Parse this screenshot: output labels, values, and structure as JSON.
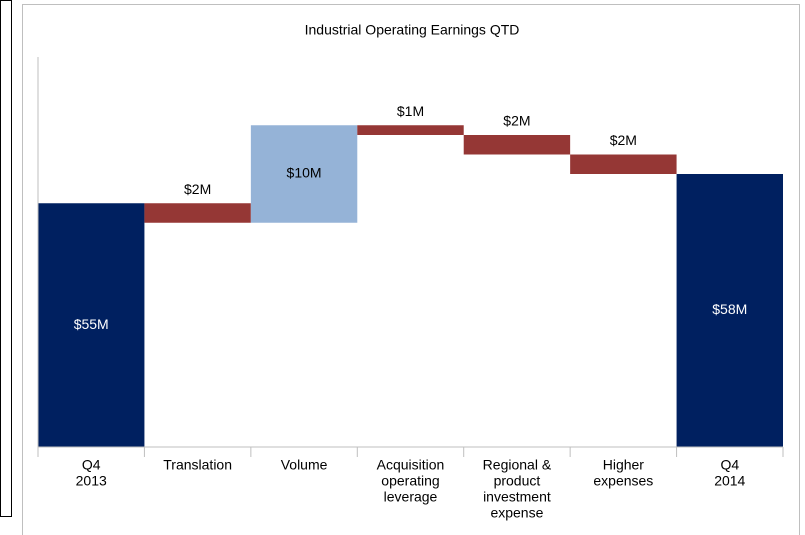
{
  "chart_data": {
    "type": "waterfall",
    "title": "Industrial Operating Earnings QTD",
    "categories": [
      [
        "Q4",
        "2013"
      ],
      [
        "Translation"
      ],
      [
        "Volume"
      ],
      [
        "Acquisition",
        "operating",
        "leverage"
      ],
      [
        "Regional &",
        "product",
        "investment",
        "expense"
      ],
      [
        "Higher",
        "expenses"
      ],
      [
        "Q4",
        "2014"
      ]
    ],
    "measure": [
      "total",
      "relative",
      "relative",
      "relative",
      "relative",
      "relative",
      "total"
    ],
    "values": [
      55,
      -2,
      10,
      -1,
      -2,
      -2,
      58
    ],
    "value_labels": [
      "$55M",
      "$2M",
      "$10M",
      "$1M",
      "$2M",
      "$2M",
      "$58M"
    ],
    "colors": {
      "total": "#002060",
      "increase": "#95b3d7",
      "decrease": "#953735"
    },
    "ylim": [
      30,
      70
    ]
  }
}
